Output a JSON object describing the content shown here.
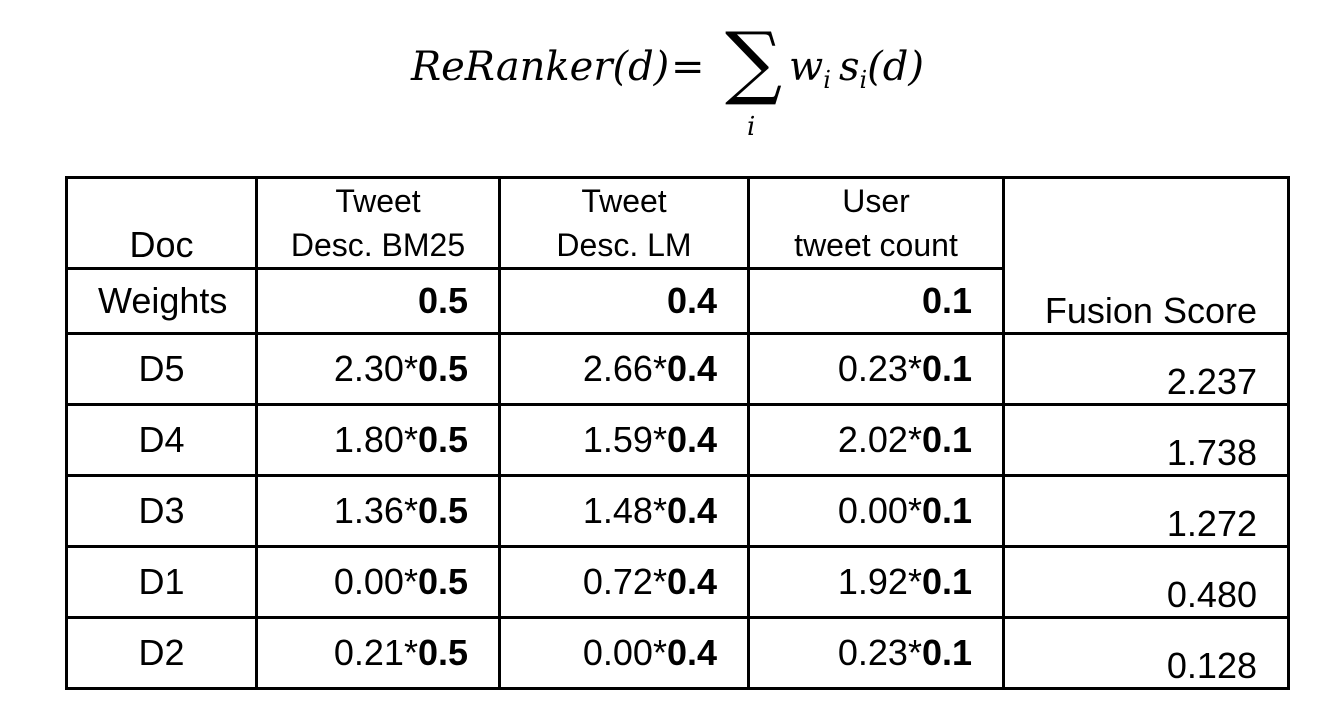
{
  "formula": {
    "lhs": "ReRanker(d)",
    "eq": "=",
    "sigma": "∑",
    "sum_index": "i",
    "rhs_w": "w",
    "rhs_w_sub": "i",
    "rhs_s": "s",
    "rhs_s_sub": "i",
    "rhs_arg": "(d)"
  },
  "table": {
    "doc_header": "Doc",
    "col1_line1": "Tweet",
    "col1_line2": "Desc. BM25",
    "col2_line1": "Tweet",
    "col2_line2": "Desc. LM",
    "col3_line1": "User",
    "col3_line2": "tweet count",
    "fusion_header": "Fusion Score",
    "weights_label": "Weights",
    "weights": [
      "0.5",
      "0.4",
      "0.1"
    ],
    "rows": [
      {
        "doc": "D5",
        "s1": "2.30*",
        "w1": "0.5",
        "s2": "2.66*",
        "w2": "0.4",
        "s3": "0.23*",
        "w3": "0.1",
        "fusion": "2.237"
      },
      {
        "doc": "D4",
        "s1": "1.80*",
        "w1": "0.5",
        "s2": "1.59*",
        "w2": "0.4",
        "s3": "2.02*",
        "w3": "0.1",
        "fusion": "1.738"
      },
      {
        "doc": "D3",
        "s1": "1.36*",
        "w1": "0.5",
        "s2": "1.48*",
        "w2": "0.4",
        "s3": "0.00*",
        "w3": "0.1",
        "fusion": "1.272"
      },
      {
        "doc": "D1",
        "s1": "0.00*",
        "w1": "0.5",
        "s2": "0.72*",
        "w2": "0.4",
        "s3": "1.92*",
        "w3": "0.1",
        "fusion": "0.480"
      },
      {
        "doc": "D2",
        "s1": "0.21*",
        "w1": "0.5",
        "s2": "0.00*",
        "w2": "0.4",
        "s3": "0.23*",
        "w3": "0.1",
        "fusion": "0.128"
      }
    ]
  }
}
